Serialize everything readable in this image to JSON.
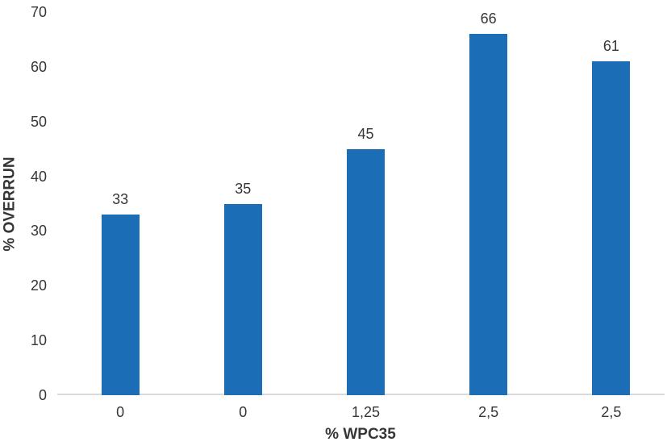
{
  "chart_data": {
    "type": "bar",
    "title": "",
    "categories": [
      "0",
      "0",
      "1,25",
      "2,5",
      "2,5"
    ],
    "values": [
      33,
      35,
      45,
      66,
      61
    ],
    "xlabel": "% WPC35",
    "ylabel": "% OVERRUN",
    "ylim": [
      0,
      70
    ],
    "yticks": [
      0,
      10,
      20,
      30,
      40,
      50,
      60,
      70
    ],
    "grid": false,
    "legend": "none",
    "decimal_separator": ",",
    "colors": {
      "bar": "#1b6db5",
      "axis_line": "#d9d9d9",
      "text": "#363636",
      "background": "#ffffff"
    }
  }
}
